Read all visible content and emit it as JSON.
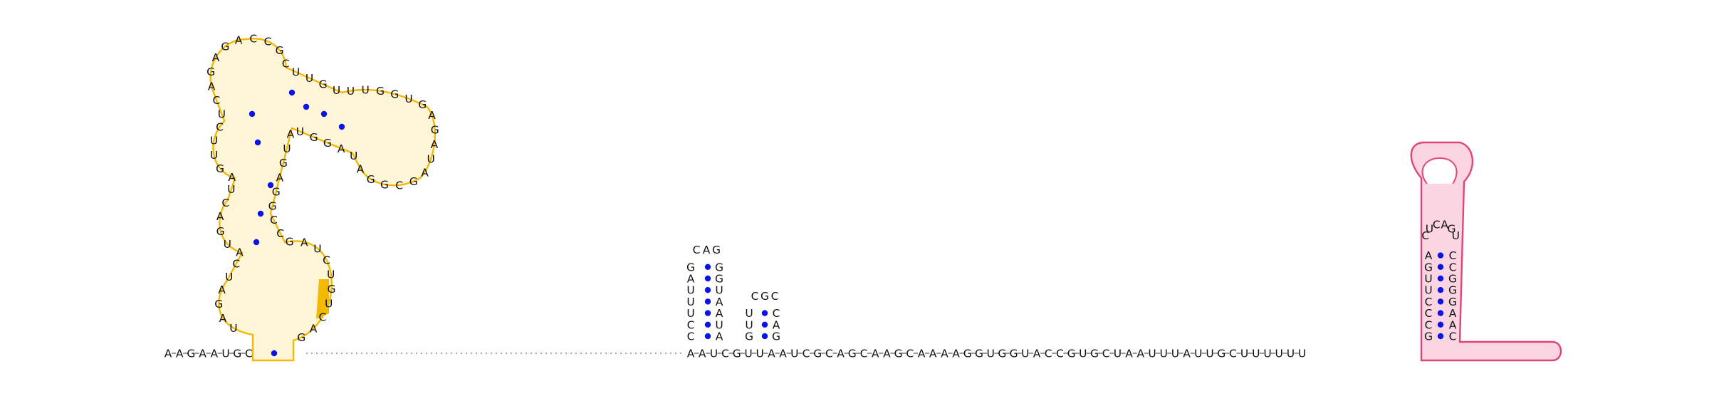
{
  "diagram": {
    "type": "rna-secondary-structure",
    "colors": {
      "highlight_orange": "#f3b800",
      "fill_orange": "#fff6d8",
      "stroke_pink": "#e0457a",
      "fill_pink": "#fbd5e2",
      "pair_dot": "#0a14e6",
      "text": "#111111"
    },
    "segments": {
      "five_prime": "AAGAAUG",
      "domain1_spine": "UAUAGCAUGAGUCUCAGAGACCGCUUGUUUGGUGAGAUAGCGGAUAGGUAUGAGGCGAUCUGUCA",
      "linker": "C",
      "domain2": "AUCCUUUAGCAGAGUAAAGGGAUCUGCGACGC",
      "middle": "GUUAAUCGCAGCAAGCAAAAGGUGGUACCGUGCUAAUUUAUUG",
      "domain3": "CCCUUGAGUCUCAGUCAAGGGC",
      "three_prime": "CUUUUUU"
    },
    "sequence_rows": {
      "bottom_strand_left": [
        "A",
        "A",
        "G",
        "A",
        "A",
        "U",
        "G",
        "C"
      ],
      "bottom_strand_right": [
        "A",
        "A",
        "U",
        "C",
        "G",
        "U",
        "U",
        "A",
        "A",
        "U",
        "C",
        "G",
        "C",
        "A",
        "G",
        "C",
        "A",
        "A",
        "G",
        "C",
        "A",
        "A",
        "A",
        "A",
        "G",
        "G",
        "U",
        "G",
        "G",
        "U",
        "A",
        "C",
        "C",
        "G",
        "U",
        "G",
        "C",
        "U",
        "A",
        "A",
        "U",
        "U",
        "U",
        "A",
        "U",
        "U",
        "G",
        "C",
        "U",
        "U",
        "U",
        "U",
        "U",
        "U"
      ]
    },
    "hairpin_center": {
      "stem5": [
        "C",
        "C",
        "U",
        "U",
        "U",
        "A",
        "G"
      ],
      "loop": [
        "C",
        "A",
        "G"
      ],
      "stem3": [
        "A",
        "U",
        "A",
        "A",
        "U",
        "G",
        "G"
      ]
    },
    "hairpin_small": {
      "stem5": [
        "G",
        "U",
        "U"
      ],
      "loop": [
        "C",
        "G",
        "C"
      ],
      "stem3": [
        "G",
        "A",
        "C"
      ]
    },
    "hairpin_right": {
      "stem5": [
        "G",
        "C",
        "C",
        "C",
        "U",
        "U",
        "G",
        "A"
      ],
      "loop": [
        "C",
        "U",
        "C",
        "A",
        "G",
        "U"
      ],
      "stem3": [
        "C",
        "A",
        "A",
        "G",
        "G",
        "G",
        "C",
        "C"
      ]
    },
    "multiloop_left": {
      "letters": [
        "U",
        "A",
        "G",
        "A",
        "U",
        "C",
        "A",
        "U",
        "G",
        "A",
        "C",
        "U",
        "A",
        "G",
        "U",
        "U",
        "C",
        "U",
        "C",
        "A",
        "G",
        "A",
        "G",
        "A",
        "C",
        "C",
        "G",
        "C",
        "U",
        "U",
        "G",
        "U",
        "U",
        "U",
        "G",
        "G",
        "U",
        "G",
        "A",
        "G",
        "A",
        "U",
        "A",
        "G",
        "C",
        "G",
        "G",
        "A",
        "U",
        "A",
        "G",
        "G",
        "U",
        "A",
        "U",
        "G",
        "A",
        "G",
        "G",
        "C",
        "C",
        "G",
        "A",
        "U",
        "C",
        "U",
        "G",
        "U",
        "C",
        "A",
        "G"
      ]
    }
  }
}
